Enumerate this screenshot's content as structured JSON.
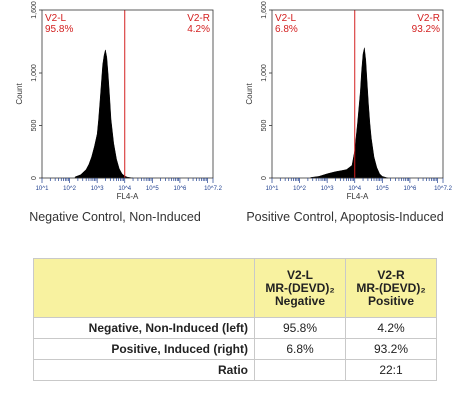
{
  "chart_data": [
    {
      "type": "area",
      "caption": "Negative Control, Non-Induced",
      "ylabel": "Count",
      "xlabel": "FL4-A",
      "ylim": [
        0,
        1600
      ],
      "y_ticks": [
        0,
        500,
        1000,
        1600
      ],
      "y_tick_labels": [
        "0",
        "500",
        "1,000",
        "1,600"
      ],
      "x_log_range": [
        1.0,
        7.2
      ],
      "x_tick_labels": [
        "10^1",
        "10^2",
        "10^3",
        "10^4",
        "10^5",
        "10^6",
        "10^7.2"
      ],
      "gate_x_log": 4.0,
      "gate_left": {
        "name": "V2-L",
        "pct": "95.8%"
      },
      "gate_right": {
        "name": "V2-R",
        "pct": "4.2%"
      },
      "x": [
        2.2,
        2.4,
        2.6,
        2.7,
        2.8,
        2.9,
        3.0,
        3.05,
        3.1,
        3.15,
        3.2,
        3.25,
        3.3,
        3.35,
        3.4,
        3.45,
        3.5,
        3.6,
        3.7,
        3.8,
        3.9,
        4.0,
        4.1,
        4.3
      ],
      "values": [
        10,
        30,
        80,
        130,
        200,
        300,
        420,
        550,
        720,
        900,
        1080,
        1170,
        1220,
        1150,
        980,
        780,
        560,
        330,
        180,
        90,
        40,
        18,
        8,
        0
      ]
    },
    {
      "type": "area",
      "caption": "Positive Control, Apoptosis-Induced",
      "ylabel": "Count",
      "xlabel": "FL4-A",
      "ylim": [
        0,
        1600
      ],
      "y_ticks": [
        0,
        500,
        1000,
        1600
      ],
      "y_tick_labels": [
        "0",
        "500",
        "1,000",
        "1,600"
      ],
      "x_log_range": [
        1.0,
        7.2
      ],
      "x_tick_labels": [
        "10^1",
        "10^2",
        "10^3",
        "10^4",
        "10^5",
        "10^6",
        "10^7.2"
      ],
      "gate_x_log": 4.0,
      "gate_left": {
        "name": "V2-L",
        "pct": "6.8%"
      },
      "gate_right": {
        "name": "V2-R",
        "pct": "93.2%"
      },
      "x": [
        2.4,
        2.7,
        3.0,
        3.3,
        3.5,
        3.7,
        3.9,
        4.0,
        4.1,
        4.2,
        4.25,
        4.3,
        4.35,
        4.4,
        4.45,
        4.5,
        4.55,
        4.6,
        4.7,
        4.8,
        4.9,
        5.0,
        5.2
      ],
      "values": [
        5,
        15,
        40,
        60,
        70,
        80,
        120,
        260,
        520,
        820,
        1020,
        1180,
        1240,
        1120,
        900,
        700,
        520,
        380,
        200,
        100,
        40,
        15,
        0
      ]
    }
  ],
  "table": {
    "headers": [
      [
        "V2-L",
        "MR-(DEVD)₂",
        "Negative"
      ],
      [
        "V2-R",
        "MR-(DEVD)₂",
        "Positive"
      ]
    ],
    "rows": [
      {
        "label": "Negative, Non-Induced (left)",
        "v2l": "95.8%",
        "v2r": "4.2%"
      },
      {
        "label": "Positive, Induced (right)",
        "v2l": "6.8%",
        "v2r": "93.2%"
      },
      {
        "label": "Ratio",
        "v2l": "",
        "v2r": "22:1"
      }
    ]
  },
  "colors": {
    "gate": "#d32020",
    "fill": "#000000",
    "header_bg": "#f8f2a0",
    "axis": "#1f3f8f"
  }
}
